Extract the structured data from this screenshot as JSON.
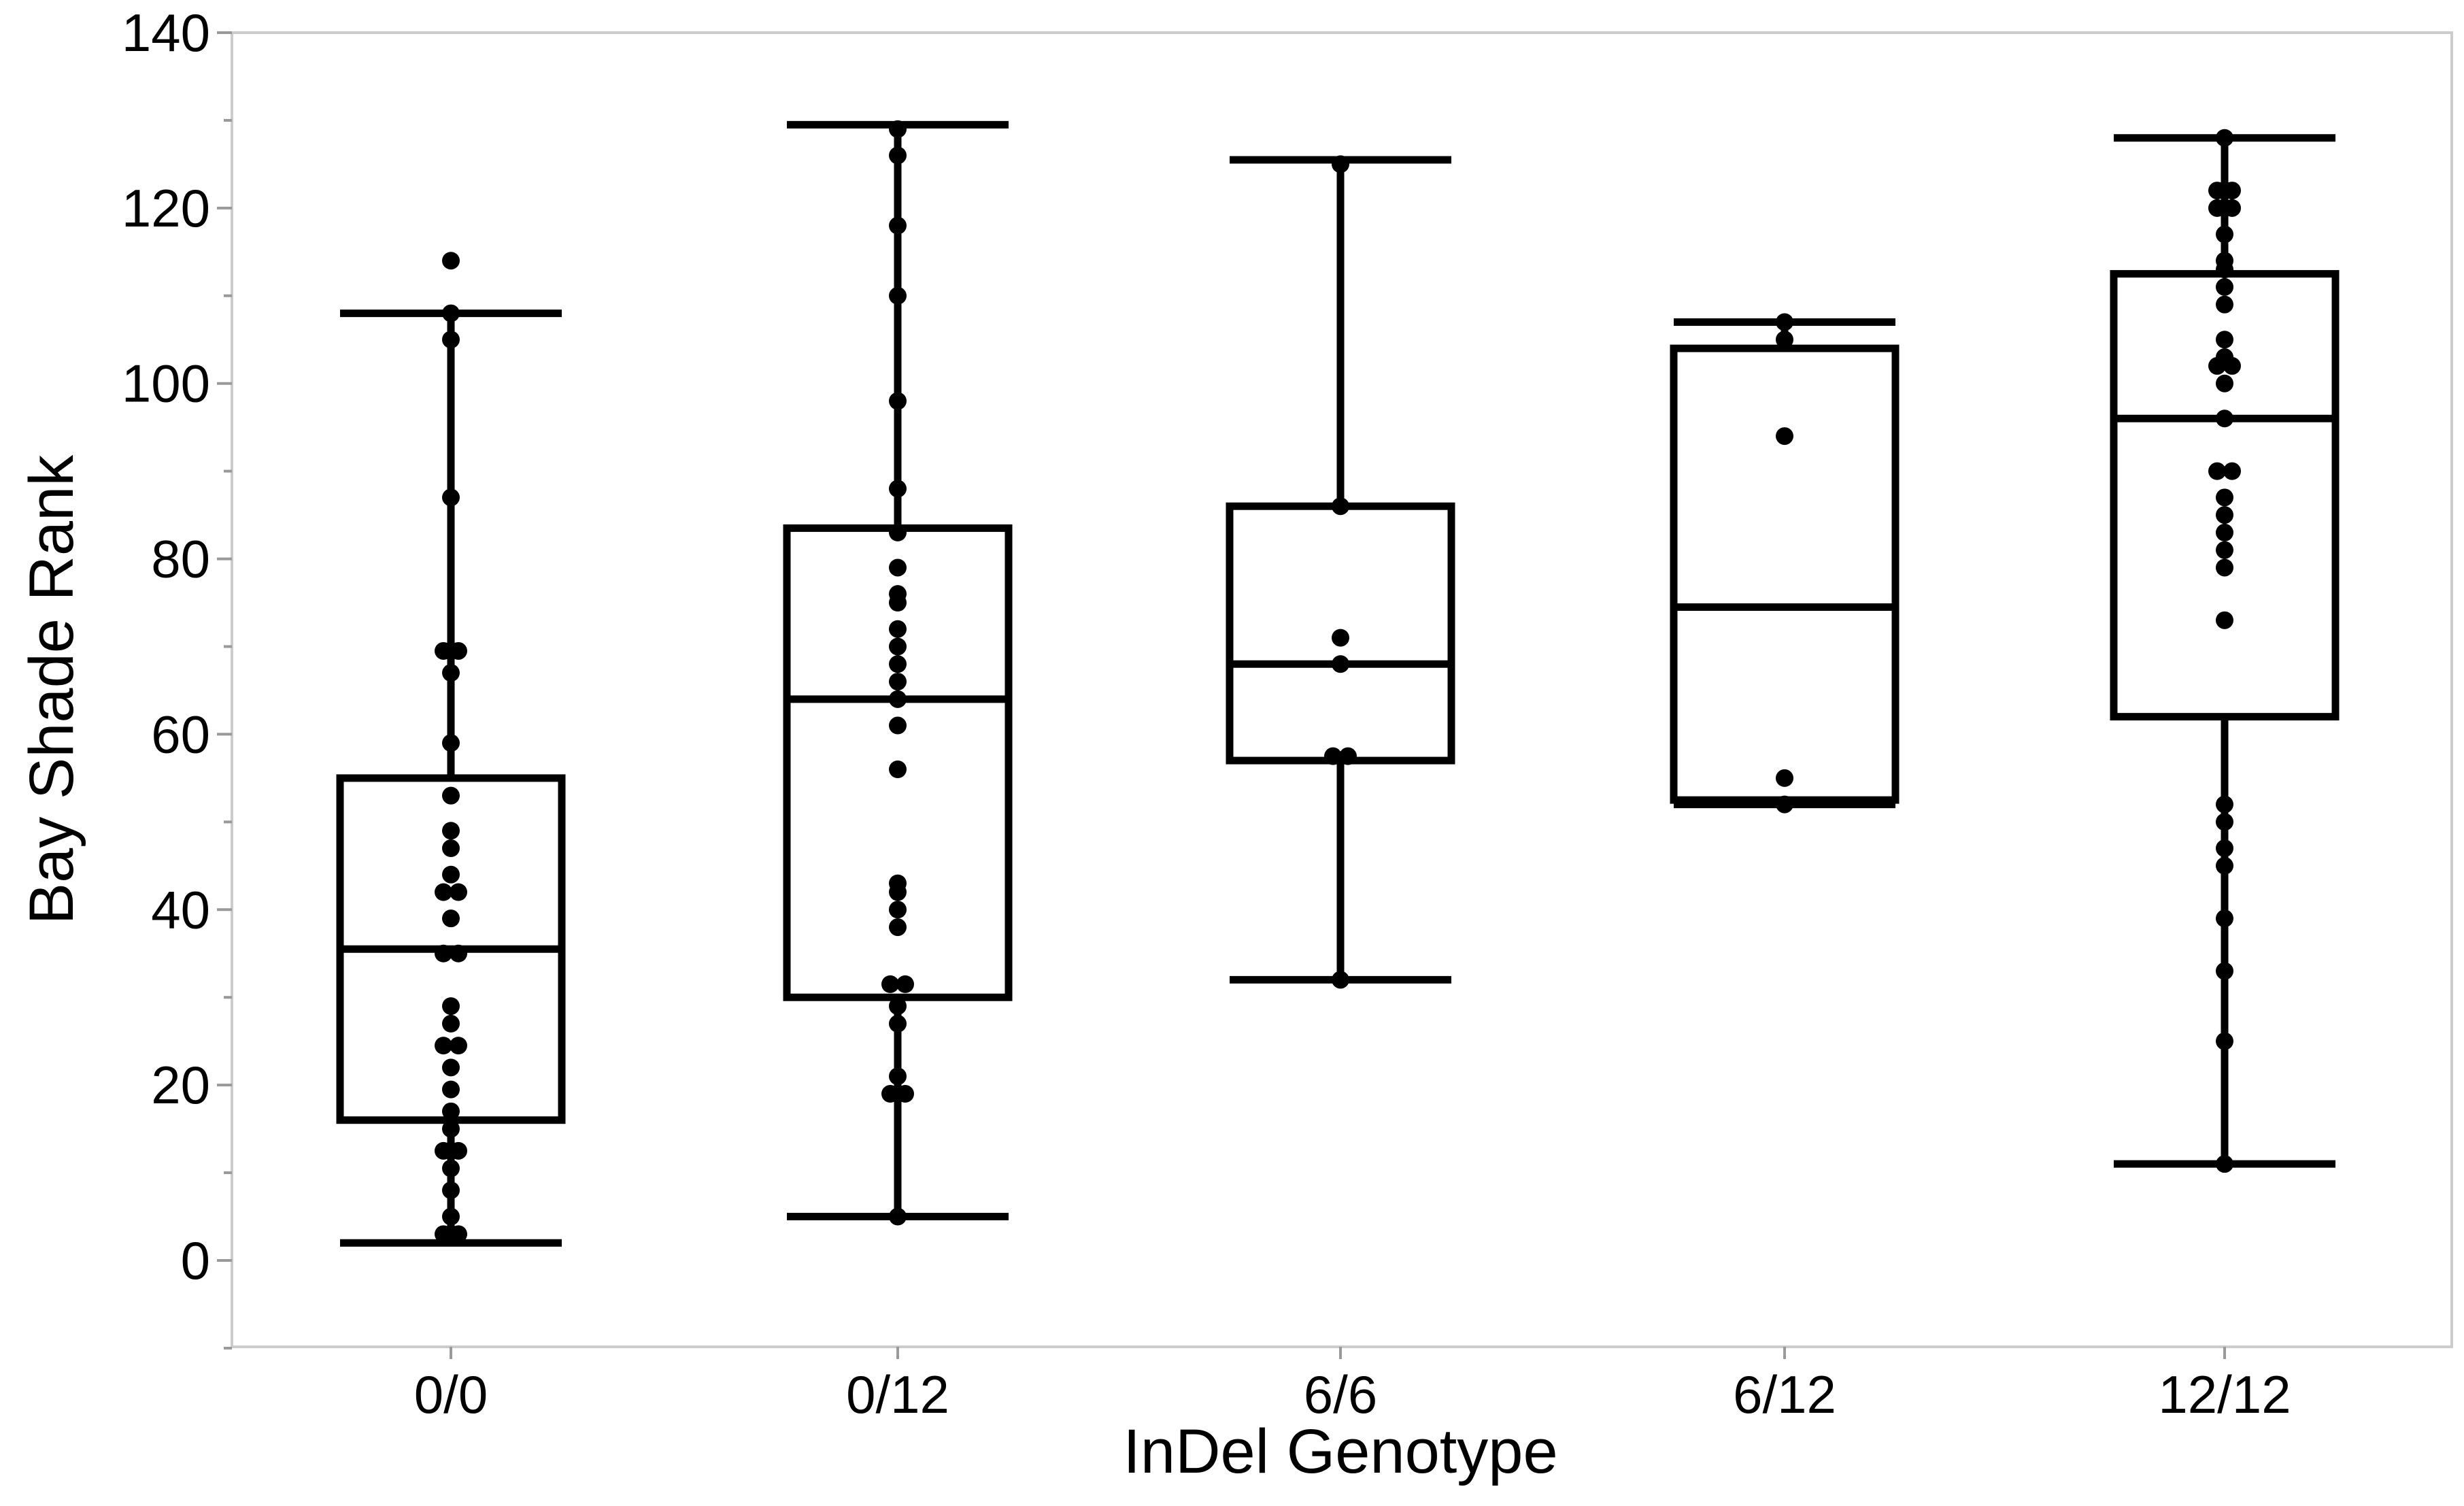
{
  "chart_data": {
    "type": "box",
    "xlabel": "InDel Genotype",
    "ylabel": "Bay Shade Rank",
    "ylim": [
      -10,
      140
    ],
    "yticks": [
      0,
      20,
      40,
      60,
      80,
      100,
      120,
      140
    ],
    "grid": false,
    "categories": [
      "0/0",
      "0/12",
      "6/6",
      "6/12",
      "12/12"
    ],
    "boxes": [
      {
        "category": "0/0",
        "whisker_low": 2,
        "q1": 16,
        "median": 35.5,
        "q3": 55,
        "whisker_high": 108,
        "points": [
          114,
          108,
          105,
          87,
          69.5,
          69.5,
          67,
          59,
          53,
          49,
          47,
          44,
          42,
          42,
          39,
          35,
          35,
          29,
          27,
          24.5,
          24.5,
          22,
          19.5,
          17,
          15,
          12.5,
          12.5,
          10.5,
          8,
          5,
          3,
          3
        ]
      },
      {
        "category": "0/12",
        "whisker_low": 5,
        "q1": 30,
        "median": 64,
        "q3": 83.5,
        "whisker_high": 129.5,
        "points": [
          129,
          126,
          118,
          110,
          98,
          88,
          83,
          79,
          76,
          75,
          72,
          70,
          68,
          66,
          64,
          61,
          56,
          43,
          42,
          40,
          38,
          31.5,
          31.5,
          29,
          27,
          21,
          19,
          19,
          5
        ]
      },
      {
        "category": "6/6",
        "whisker_low": 32,
        "q1": 57,
        "median": 68,
        "q3": 86,
        "whisker_high": 125.5,
        "points": [
          125,
          86,
          71,
          68,
          57.5,
          57.5,
          32
        ]
      },
      {
        "category": "6/12",
        "whisker_low": 52,
        "q1": 52.5,
        "median": 74.5,
        "q3": 104,
        "whisker_high": 107,
        "points": [
          107,
          105,
          94,
          55,
          52
        ]
      },
      {
        "category": "12/12",
        "whisker_low": 11,
        "q1": 62,
        "median": 96,
        "q3": 112.5,
        "whisker_high": 128,
        "points": [
          128,
          122,
          122,
          120,
          120,
          117,
          114,
          113,
          111,
          109,
          105,
          103,
          102,
          102,
          100,
          96,
          90,
          90,
          87,
          85,
          83,
          81,
          79,
          73,
          52,
          50,
          47,
          45,
          39,
          33,
          25,
          11
        ]
      }
    ]
  }
}
